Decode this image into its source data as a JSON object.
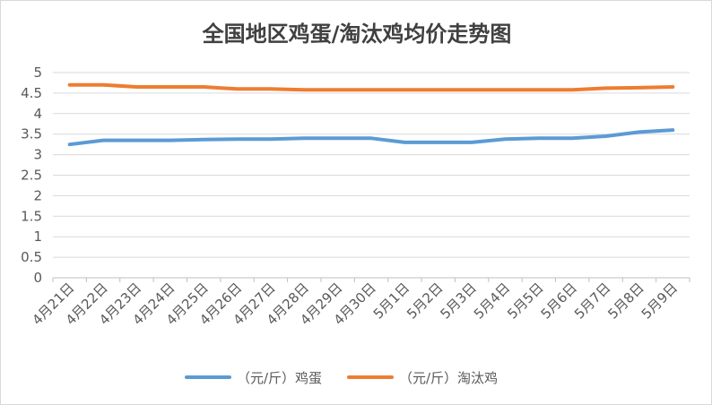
{
  "chart_data": {
    "type": "line",
    "title": "全国地区鸡蛋/淘汰鸡均价走势图",
    "categories": [
      "4月21日",
      "4月22日",
      "4月23日",
      "4月24日",
      "4月25日",
      "4月26日",
      "4月27日",
      "4月28日",
      "4月29日",
      "4月30日",
      "5月1日",
      "5月2日",
      "5月3日",
      "5月4日",
      "5月5日",
      "5月6日",
      "5月7日",
      "5月8日",
      "5月9日"
    ],
    "y_ticks": [
      "0",
      "0.5",
      "1",
      "1.5",
      "2",
      "2.5",
      "3",
      "3.5",
      "4",
      "4.5",
      "5"
    ],
    "ylim": [
      0,
      5
    ],
    "grid": true,
    "legend_position": "bottom",
    "series": [
      {
        "name": "（元/斤）鸡蛋",
        "color": "#5b9bd5",
        "values": [
          3.25,
          3.35,
          3.35,
          3.35,
          3.37,
          3.38,
          3.38,
          3.4,
          3.4,
          3.4,
          3.3,
          3.3,
          3.3,
          3.38,
          3.4,
          3.4,
          3.45,
          3.55,
          3.6
        ]
      },
      {
        "name": "（元/斤）淘汰鸡",
        "color": "#ed7d31",
        "values": [
          4.7,
          4.7,
          4.65,
          4.65,
          4.65,
          4.6,
          4.6,
          4.58,
          4.58,
          4.58,
          4.58,
          4.58,
          4.58,
          4.58,
          4.58,
          4.58,
          4.62,
          4.63,
          4.65
        ]
      }
    ]
  }
}
